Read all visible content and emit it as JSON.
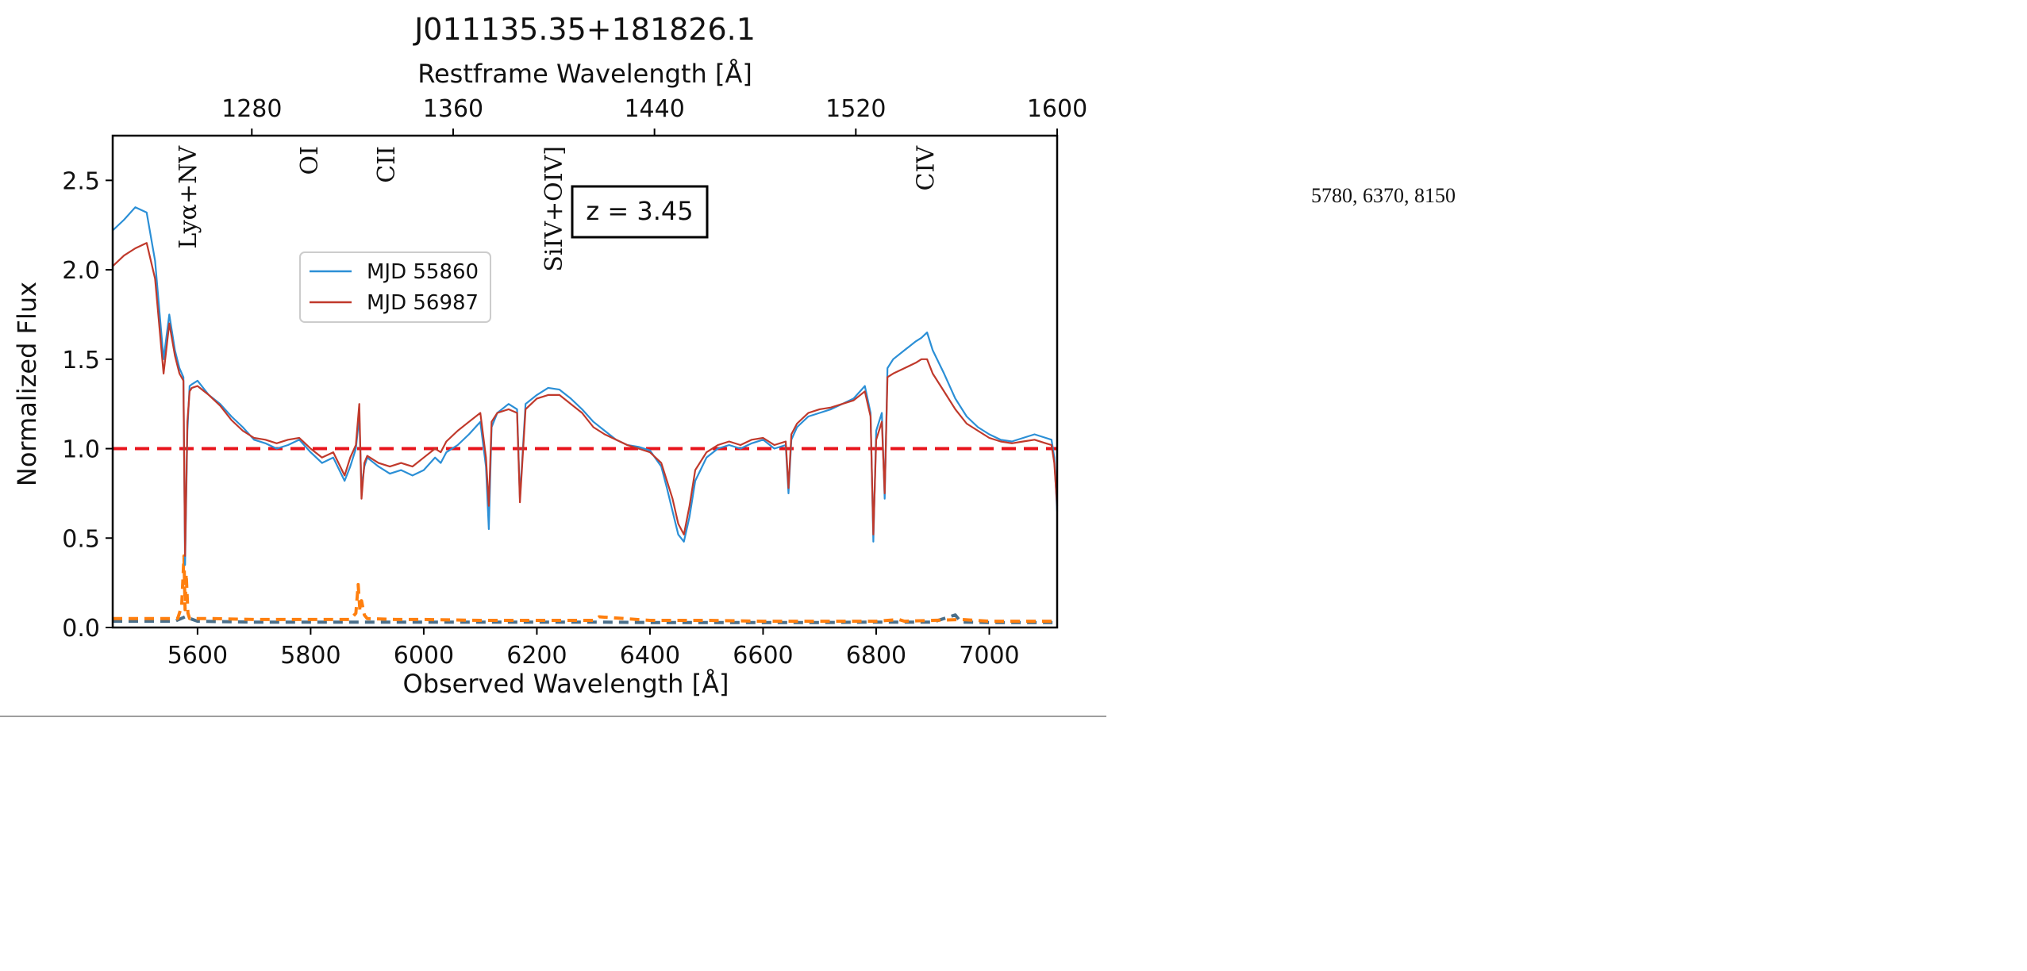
{
  "side_note": "5780, 6370, 8150",
  "chart_data": {
    "type": "line",
    "title": "J011135.35+181826.1",
    "xlabel": "Observed Wavelength [Å]",
    "ylabel": "Normalized Flux",
    "top_xlabel": "Restframe Wavelength [Å]",
    "xlim": [
      5450,
      7120
    ],
    "ylim": [
      0,
      2.75
    ],
    "redshift": 3.45,
    "redshift_label": "z = 3.45",
    "xticks": [
      5600,
      5800,
      6000,
      6200,
      6400,
      6600,
      6800,
      7000
    ],
    "yticks": [
      0.0,
      0.5,
      1.0,
      1.5,
      2.0,
      2.5
    ],
    "top_xticks": [
      1280,
      1360,
      1440,
      1520,
      1600
    ],
    "legend_position": "upper-left-center",
    "grid": false,
    "reference_line": {
      "y": 1.0,
      "style": "dashed",
      "color": "#e8141c"
    },
    "line_labels": [
      {
        "text": "Lyα+NV",
        "x": 5583
      },
      {
        "text": "OI",
        "x": 5798
      },
      {
        "text": "CII",
        "x": 5934
      },
      {
        "text": "SiIV+OIV]",
        "x": 6230
      },
      {
        "text": "CIV",
        "x": 6888
      }
    ],
    "series": [
      {
        "name": "MJD 55860",
        "color": "#2b8fd6",
        "x": [
          5450,
          5470,
          5490,
          5510,
          5525,
          5540,
          5550,
          5560,
          5568,
          5575,
          5578,
          5582,
          5586,
          5590,
          5600,
          5620,
          5640,
          5660,
          5680,
          5700,
          5720,
          5740,
          5760,
          5780,
          5800,
          5820,
          5840,
          5860,
          5870,
          5880,
          5886,
          5890,
          5895,
          5900,
          5920,
          5940,
          5960,
          5980,
          6000,
          6020,
          6030,
          6040,
          6060,
          6080,
          6100,
          6110,
          6115,
          6120,
          6130,
          6150,
          6165,
          6170,
          6180,
          6200,
          6220,
          6240,
          6260,
          6280,
          6300,
          6320,
          6340,
          6360,
          6380,
          6400,
          6420,
          6430,
          6440,
          6450,
          6460,
          6470,
          6480,
          6500,
          6520,
          6540,
          6560,
          6580,
          6600,
          6620,
          6640,
          6645,
          6650,
          6660,
          6680,
          6700,
          6720,
          6740,
          6760,
          6780,
          6790,
          6795,
          6800,
          6810,
          6815,
          6820,
          6830,
          6850,
          6870,
          6880,
          6890,
          6900,
          6920,
          6940,
          6960,
          6980,
          7000,
          7020,
          7040,
          7060,
          7080,
          7100,
          7110,
          7115,
          7120
        ],
        "y": [
          2.22,
          2.28,
          2.35,
          2.32,
          2.05,
          1.5,
          1.75,
          1.55,
          1.45,
          1.4,
          0.35,
          1.1,
          1.35,
          1.36,
          1.38,
          1.3,
          1.25,
          1.18,
          1.12,
          1.05,
          1.03,
          1.0,
          1.02,
          1.05,
          0.98,
          0.92,
          0.95,
          0.82,
          0.9,
          1.0,
          1.18,
          0.78,
          0.9,
          0.95,
          0.9,
          0.86,
          0.88,
          0.85,
          0.88,
          0.95,
          0.92,
          0.98,
          1.02,
          1.08,
          1.15,
          0.9,
          0.55,
          1.12,
          1.2,
          1.25,
          1.22,
          0.72,
          1.25,
          1.3,
          1.34,
          1.33,
          1.28,
          1.22,
          1.15,
          1.1,
          1.05,
          1.02,
          1.01,
          0.99,
          0.9,
          0.78,
          0.65,
          0.52,
          0.48,
          0.62,
          0.82,
          0.95,
          1.0,
          1.02,
          1.0,
          1.03,
          1.05,
          1.0,
          1.02,
          0.75,
          1.05,
          1.12,
          1.18,
          1.2,
          1.22,
          1.25,
          1.28,
          1.35,
          1.2,
          0.48,
          1.1,
          1.2,
          0.72,
          1.45,
          1.5,
          1.55,
          1.6,
          1.62,
          1.65,
          1.55,
          1.42,
          1.28,
          1.18,
          1.12,
          1.08,
          1.05,
          1.04,
          1.06,
          1.08,
          1.06,
          1.05,
          0.95,
          0.65
        ]
      },
      {
        "name": "MJD 56987",
        "color": "#c0392b",
        "x": [
          5450,
          5470,
          5490,
          5510,
          5525,
          5540,
          5550,
          5560,
          5568,
          5575,
          5578,
          5582,
          5586,
          5590,
          5600,
          5620,
          5640,
          5660,
          5680,
          5700,
          5720,
          5740,
          5760,
          5780,
          5800,
          5820,
          5840,
          5860,
          5870,
          5880,
          5886,
          5890,
          5895,
          5900,
          5920,
          5940,
          5960,
          5980,
          6000,
          6020,
          6030,
          6040,
          6060,
          6080,
          6100,
          6110,
          6115,
          6120,
          6130,
          6150,
          6165,
          6170,
          6180,
          6200,
          6220,
          6240,
          6260,
          6280,
          6300,
          6320,
          6340,
          6360,
          6380,
          6400,
          6420,
          6430,
          6440,
          6450,
          6460,
          6470,
          6480,
          6500,
          6520,
          6540,
          6560,
          6580,
          6600,
          6620,
          6640,
          6645,
          6650,
          6660,
          6680,
          6700,
          6720,
          6740,
          6760,
          6780,
          6790,
          6795,
          6800,
          6810,
          6815,
          6820,
          6830,
          6850,
          6870,
          6880,
          6890,
          6900,
          6920,
          6940,
          6960,
          6980,
          7000,
          7020,
          7040,
          7060,
          7080,
          7100,
          7110,
          7115,
          7120
        ],
        "y": [
          2.02,
          2.08,
          2.12,
          2.15,
          1.95,
          1.42,
          1.7,
          1.52,
          1.42,
          1.38,
          0.4,
          1.15,
          1.32,
          1.34,
          1.35,
          1.3,
          1.24,
          1.16,
          1.1,
          1.06,
          1.05,
          1.03,
          1.05,
          1.06,
          1.0,
          0.95,
          0.98,
          0.85,
          0.95,
          1.02,
          1.25,
          0.72,
          0.92,
          0.96,
          0.92,
          0.9,
          0.92,
          0.9,
          0.95,
          1.0,
          0.98,
          1.04,
          1.1,
          1.15,
          1.2,
          0.95,
          0.68,
          1.15,
          1.2,
          1.22,
          1.2,
          0.7,
          1.22,
          1.28,
          1.3,
          1.3,
          1.25,
          1.2,
          1.12,
          1.08,
          1.05,
          1.02,
          1.0,
          0.98,
          0.92,
          0.82,
          0.72,
          0.58,
          0.52,
          0.68,
          0.88,
          0.98,
          1.02,
          1.04,
          1.02,
          1.05,
          1.06,
          1.02,
          1.04,
          0.78,
          1.08,
          1.14,
          1.2,
          1.22,
          1.23,
          1.25,
          1.27,
          1.32,
          1.18,
          0.52,
          1.05,
          1.15,
          0.75,
          1.4,
          1.42,
          1.45,
          1.48,
          1.5,
          1.5,
          1.42,
          1.32,
          1.22,
          1.14,
          1.1,
          1.06,
          1.04,
          1.03,
          1.04,
          1.05,
          1.03,
          1.02,
          0.92,
          0.68
        ]
      },
      {
        "name": "",
        "color": "#ff7f0e",
        "style": "dashed",
        "x": [
          5450,
          5500,
          5550,
          5565,
          5572,
          5576,
          5578,
          5580,
          5583,
          5586,
          5590,
          5620,
          5700,
          5800,
          5870,
          5880,
          5884,
          5887,
          5890,
          5895,
          5900,
          5950,
          6000,
          6100,
          6200,
          6300,
          6310,
          6400,
          6500,
          6600,
          6700,
          6800,
          6840,
          6850,
          6900,
          6950,
          7000,
          7050,
          7120
        ],
        "y": [
          0.05,
          0.05,
          0.05,
          0.05,
          0.12,
          0.4,
          0.1,
          0.3,
          0.08,
          0.05,
          0.05,
          0.05,
          0.045,
          0.045,
          0.045,
          0.08,
          0.24,
          0.1,
          0.15,
          0.07,
          0.05,
          0.045,
          0.045,
          0.04,
          0.04,
          0.04,
          0.06,
          0.04,
          0.04,
          0.035,
          0.035,
          0.035,
          0.045,
          0.035,
          0.04,
          0.045,
          0.035,
          0.035,
          0.035
        ]
      },
      {
        "name": "",
        "color": "#4a6f8a",
        "style": "dashed",
        "x": [
          5450,
          5500,
          5560,
          5578,
          5600,
          5700,
          5800,
          5900,
          6000,
          6100,
          6200,
          6300,
          6400,
          6500,
          6600,
          6700,
          6800,
          6900,
          6940,
          6950,
          7000,
          7120
        ],
        "y": [
          0.035,
          0.035,
          0.035,
          0.06,
          0.035,
          0.03,
          0.03,
          0.03,
          0.03,
          0.03,
          0.03,
          0.03,
          0.028,
          0.028,
          0.028,
          0.028,
          0.03,
          0.03,
          0.07,
          0.03,
          0.028,
          0.028
        ]
      }
    ]
  }
}
